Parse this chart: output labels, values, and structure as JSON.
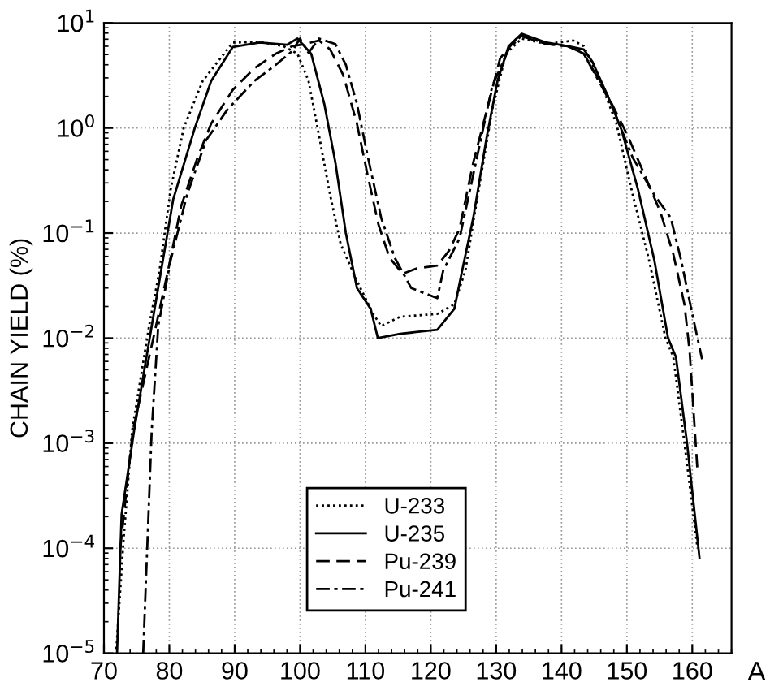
{
  "chart_data": {
    "type": "line",
    "xlabel": "A",
    "ylabel": "CHAIN YIELD (%)",
    "log": "y",
    "xlim": [
      70,
      166
    ],
    "xticks": [
      70,
      80,
      90,
      100,
      110,
      120,
      130,
      140,
      150,
      160
    ],
    "ylim": [
      1e-05,
      10
    ],
    "yticks": [
      {
        "value": 1e-05,
        "label": "10$^{−5}$"
      },
      {
        "value": 0.0001,
        "label": "10$^{−4}$"
      },
      {
        "value": 0.001,
        "label": "10$^{−3}$"
      },
      {
        "value": 0.01,
        "label": "10$^{−2}$"
      },
      {
        "value": 0.1,
        "label": "10$^{−1}$"
      },
      {
        "value": 1,
        "label": "10$^{0}$"
      },
      {
        "value": 10,
        "label": "10$^{1}$"
      }
    ],
    "grid": true,
    "legend": "bottom",
    "marker": "none",
    "series": [
      {
        "name": "U-233",
        "color": "#000000",
        "line_style": "dotted",
        "x": [
          71.9,
          73,
          74.3,
          76.9,
          78.5,
          80.2,
          82.2,
          85.1,
          89.7,
          93.8,
          97.5,
          99.6,
          101.3,
          102.9,
          104.6,
          106.2,
          108.7,
          111.2,
          112.4,
          115.3,
          121,
          123.6,
          125.3,
          126.9,
          129.4,
          131.5,
          133.9,
          137.7,
          141.8,
          143.4,
          145.9,
          148.4,
          150.9,
          153.4,
          155.9,
          157.1,
          158.8,
          160.8
        ],
        "values": [
          1.1e-05,
          0.00012,
          0.0013,
          0.013,
          0.044,
          0.26,
          1.0,
          2.8,
          6.5,
          6.6,
          6.0,
          5.1,
          2.8,
          0.85,
          0.23,
          0.079,
          0.035,
          0.017,
          0.013,
          0.016,
          0.017,
          0.021,
          0.044,
          0.18,
          1.5,
          5.1,
          7.1,
          6.3,
          6.8,
          6.0,
          2.8,
          1.1,
          0.23,
          0.055,
          0.01,
          0.0066,
          0.001,
          0.0001
        ]
      },
      {
        "name": "U-235",
        "color": "#000000",
        "line_style": "solid",
        "x": [
          72,
          72.7,
          74.6,
          77.3,
          80.6,
          83.9,
          86.4,
          89.7,
          93.8,
          98,
          99.6,
          101.7,
          103.7,
          105.4,
          107,
          108.7,
          110.8,
          111.9,
          115.3,
          121,
          123.6,
          124.8,
          126.5,
          128.6,
          130.2,
          131.9,
          133.9,
          137.7,
          141,
          143.4,
          144.7,
          147.6,
          149.2,
          151.7,
          154.2,
          156.3,
          157.5,
          159.2,
          161.1
        ],
        "values": [
          1e-05,
          0.00021,
          0.0013,
          0.013,
          0.21,
          1.0,
          2.8,
          5.9,
          6.5,
          6.2,
          7.1,
          5.1,
          1.7,
          0.47,
          0.1,
          0.03,
          0.019,
          0.01,
          0.011,
          0.012,
          0.019,
          0.044,
          0.14,
          0.85,
          2.8,
          6.0,
          7.9,
          6.5,
          6.0,
          5.6,
          4.3,
          1.7,
          0.95,
          0.26,
          0.055,
          0.01,
          0.0066,
          0.001,
          8.1e-05
        ]
      },
      {
        "name": "Pu-239",
        "color": "#000000",
        "line_style": "dashed",
        "x": [
          72.5,
          74.4,
          77.7,
          79.8,
          81.8,
          84.3,
          86.4,
          89.7,
          93,
          96.3,
          98.8,
          100.8,
          102.9,
          104.6,
          106.6,
          108.7,
          110.4,
          112,
          113.7,
          115.7,
          117.8,
          121,
          122.8,
          124.4,
          126.5,
          128.6,
          130.6,
          133.5,
          137.7,
          141,
          143.4,
          146.8,
          150.1,
          152.6,
          155.1,
          157.1,
          158.8,
          159.6,
          160.8
        ],
        "values": [
          0.0001,
          0.0013,
          0.011,
          0.044,
          0.18,
          0.52,
          1.1,
          2.3,
          3.7,
          5.1,
          6.0,
          6.3,
          6.8,
          5.6,
          3.2,
          1.1,
          0.34,
          0.12,
          0.058,
          0.041,
          0.046,
          0.049,
          0.068,
          0.11,
          0.47,
          1.5,
          4.6,
          7.6,
          6.3,
          6.0,
          5.1,
          2.2,
          0.85,
          0.37,
          0.16,
          0.063,
          0.021,
          0.0074,
          0.00054
        ]
      },
      {
        "name": "Pu-241",
        "color": "#000000",
        "line_style": "dashdot",
        "x": [
          76,
          77.3,
          78.3,
          80.2,
          82.7,
          85.6,
          88.9,
          93,
          96.3,
          98.8,
          100,
          101.3,
          102.9,
          105.4,
          107,
          108.7,
          110.4,
          112.4,
          114.5,
          117,
          121,
          121.9,
          124.4,
          126.9,
          129.4,
          131.9,
          133.9,
          137.7,
          141,
          143.4,
          147.6,
          150.9,
          154.2,
          156.7,
          158.3,
          160,
          160.8,
          161.5
        ],
        "values": [
          1e-05,
          0.0013,
          0.013,
          0.055,
          0.23,
          0.76,
          1.5,
          2.8,
          4.0,
          5.4,
          7.1,
          5.2,
          7.1,
          6.3,
          4.0,
          1.7,
          0.52,
          0.14,
          0.058,
          0.03,
          0.024,
          0.044,
          0.089,
          0.47,
          2.5,
          5.6,
          7.6,
          6.3,
          6.0,
          5.1,
          1.7,
          0.52,
          0.23,
          0.14,
          0.055,
          0.017,
          0.01,
          0.0063
        ]
      }
    ]
  }
}
